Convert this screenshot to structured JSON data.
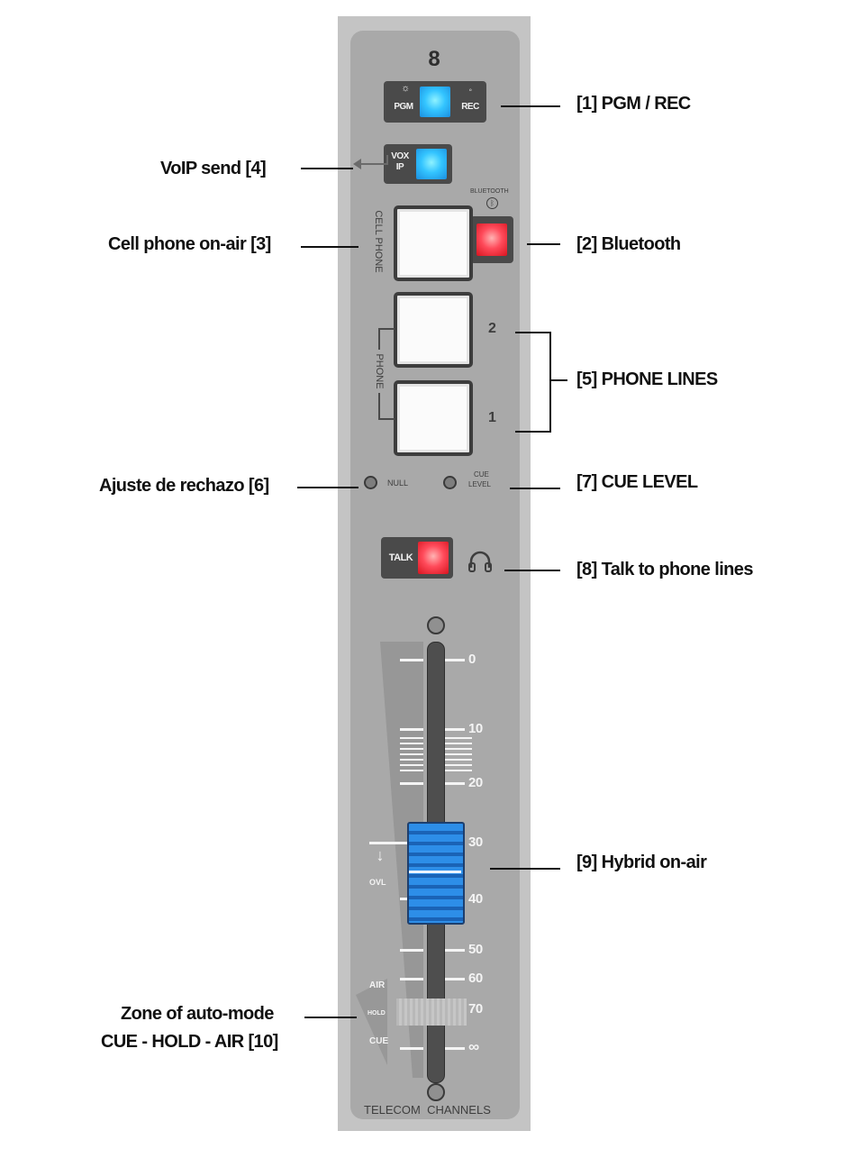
{
  "strip": {
    "channel_number": "8",
    "pgm_label": "PGM",
    "rec_label": "REC",
    "vox_label_1": "VOX",
    "vox_label_2": "IP",
    "bluetooth_label": "BLUETOOTH",
    "cell_phone_label": "CELL PHONE",
    "phone_label": "PHONE",
    "line_2": "2",
    "line_1": "1",
    "null_label": "NULL",
    "cue_level_1": "CUE",
    "cue_level_2": "LEVEL",
    "talk_label": "TALK",
    "scale": [
      "0",
      "10",
      "20",
      "30",
      "40",
      "50",
      "60",
      "70",
      "∞"
    ],
    "ovl_label": "OVL",
    "zone_air": "AIR",
    "zone_hold": "HOLD",
    "zone_cue": "CUE",
    "footer": "TELECOM  CHANNELS"
  },
  "callouts": {
    "pgm_rec": "[1] PGM / REC",
    "voip": "VoIP  send  [4]",
    "bluetooth": "[2] Bluetooth",
    "cell_phone": "Cell phone on-air [3]",
    "phone_lines": "[5] PHONE  LINES",
    "null": "Ajuste de rechazo  [6]",
    "cue_level": "[7]  CUE LEVEL",
    "talk": "[8] Talk to phone lines",
    "hybrid": "[9] Hybrid on-air",
    "zone_1": "Zone of auto-mode",
    "zone_2": "CUE - HOLD - AIR [10]"
  },
  "colors": {
    "blue_led": "#33c4ff",
    "red_led": "#ff4a5a",
    "fader_knob": "#2d8ee8"
  }
}
